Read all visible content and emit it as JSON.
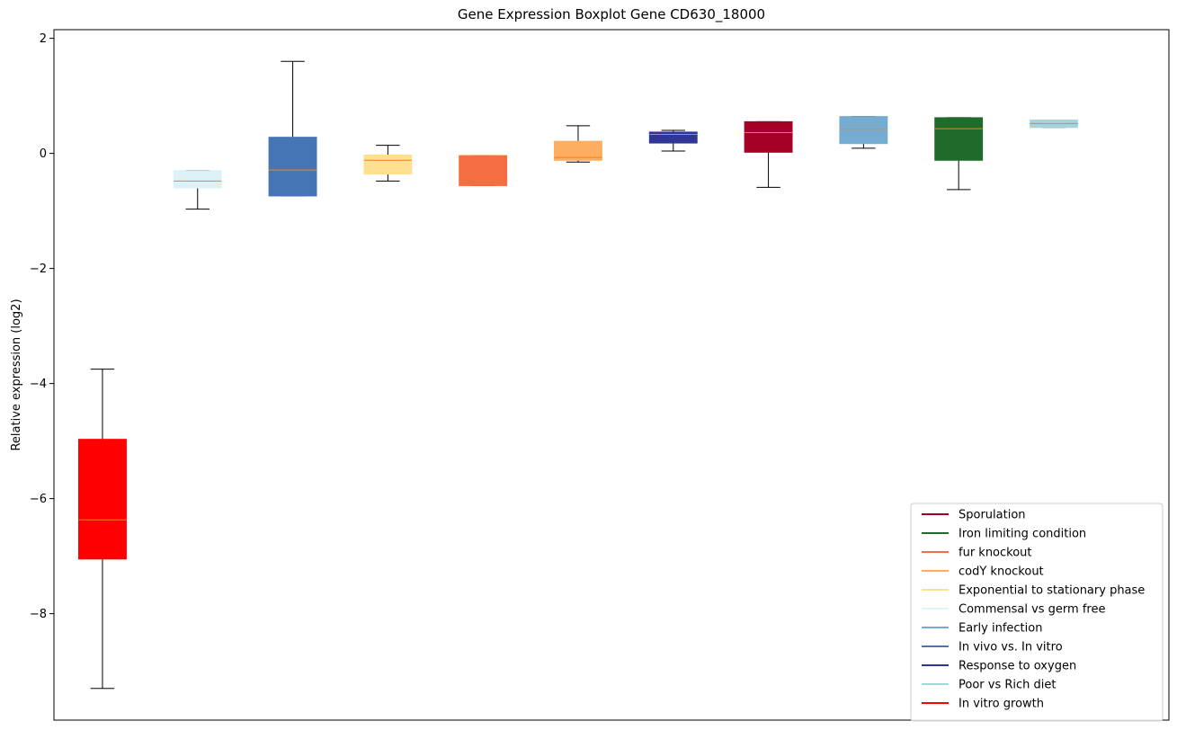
{
  "chart_data": {
    "type": "box",
    "title": "Gene Expression Boxplot Gene CD630_18000",
    "ylabel": "Relative expression (log2)",
    "xlabel": "",
    "ylim": [
      -9.85,
      2.15
    ],
    "yticks": [
      2,
      0,
      -2,
      -4,
      -6,
      -8
    ],
    "ytick_labels": [
      "2",
      "0",
      "−2",
      "−4",
      "−6",
      "−8"
    ],
    "grid": false,
    "legend_position": "lower-right",
    "median_color": "#ff7f0e",
    "boxes": [
      {
        "series": "In vitro growth",
        "color": "#ff0000",
        "whislo": -9.3,
        "q1": -7.05,
        "med": -6.37,
        "q3": -4.97,
        "whishi": -3.75
      },
      {
        "series": "Commensal vs germ free",
        "color": "#ddf1f9",
        "whislo": -0.97,
        "q1": -0.6,
        "med": -0.48,
        "q3": -0.3,
        "whishi": -0.3
      },
      {
        "series": "In vivo vs. In vitro",
        "color": "#4575b4",
        "whislo": -0.74,
        "q1": -0.74,
        "med": -0.29,
        "q3": 0.28,
        "whishi": 1.6
      },
      {
        "series": "Exponential to stationary phase",
        "color": "#fee090",
        "whislo": -0.48,
        "q1": -0.36,
        "med": -0.12,
        "q3": -0.03,
        "whishi": 0.14
      },
      {
        "series": "fur knockout",
        "color": "#f46d43",
        "whislo": -0.56,
        "q1": -0.56,
        "med": -0.04,
        "q3": -0.04,
        "whishi": -0.04
      },
      {
        "series": "codY knockout",
        "color": "#fdae61",
        "whislo": -0.15,
        "q1": -0.12,
        "med": -0.07,
        "q3": 0.21,
        "whishi": 0.48
      },
      {
        "series": "Response to oxygen",
        "color": "#313695",
        "whislo": 0.04,
        "q1": 0.18,
        "med": 0.33,
        "q3": 0.37,
        "whishi": 0.4
      },
      {
        "series": "Sporulation",
        "color": "#a50026",
        "whislo": -0.59,
        "q1": 0.02,
        "med": 0.36,
        "q3": 0.55,
        "whishi": 0.55
      },
      {
        "series": "Early infection",
        "color": "#74add1",
        "whislo": 0.09,
        "q1": 0.17,
        "med": 0.42,
        "q3": 0.64,
        "whishi": 0.64
      },
      {
        "series": "Iron limiting condition",
        "color": "#1e6b2c",
        "whislo": -0.63,
        "q1": -0.12,
        "med": 0.43,
        "q3": 0.62,
        "whishi": 0.62
      },
      {
        "series": "Poor vs Rich diet",
        "color": "#a6d4de",
        "whislo": 0.45,
        "q1": 0.45,
        "med": 0.52,
        "q3": 0.58,
        "whishi": 0.58
      }
    ],
    "legend": [
      {
        "label": "Sporulation",
        "color": "#a50026"
      },
      {
        "label": "Iron limiting condition",
        "color": "#1e6b2c"
      },
      {
        "label": "fur knockout",
        "color": "#f46d43"
      },
      {
        "label": "codY knockout",
        "color": "#fdae61"
      },
      {
        "label": "Exponential to stationary phase",
        "color": "#fee090"
      },
      {
        "label": "Commensal vs germ free",
        "color": "#e0f3f8"
      },
      {
        "label": "Early infection",
        "color": "#74add1"
      },
      {
        "label": "In vivo vs. In vitro",
        "color": "#4575b4"
      },
      {
        "label": "Response to oxygen",
        "color": "#313695"
      },
      {
        "label": "Poor vs Rich diet",
        "color": "#a6d4de"
      },
      {
        "label": "In vitro growth",
        "color": "#ff0000"
      }
    ]
  }
}
